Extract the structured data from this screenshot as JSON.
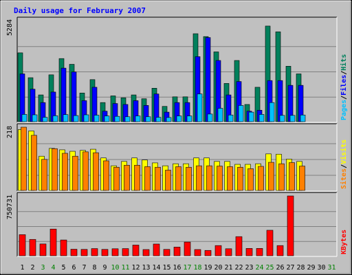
{
  "chart_data": {
    "type": "bar",
    "title": "Daily usage for February 2007",
    "x": [
      "1",
      "2",
      "3",
      "4",
      "5",
      "6",
      "7",
      "8",
      "9",
      "10",
      "11",
      "12",
      "13",
      "14",
      "15",
      "16",
      "17",
      "18",
      "19",
      "20",
      "21",
      "22",
      "23",
      "24",
      "25",
      "26",
      "27",
      "28",
      "29",
      "30",
      "31"
    ],
    "weekend_days": [
      "3",
      "4",
      "10",
      "11",
      "17",
      "18",
      "24",
      "25",
      "31"
    ],
    "colors": {
      "background": "#c0c0c0",
      "title": "#0000ff",
      "hits": "#00805c",
      "files": "#0000ff",
      "pages": "#00c0ff",
      "visits": "#ffff00",
      "sites": "#ff8000",
      "kbytes": "#ff0000",
      "weekday_label": "#000000",
      "weekend_label": "#008000"
    },
    "panels": [
      {
        "id": "hits-files-pages",
        "ymax_label": "5284",
        "ymax": 5284,
        "legend": [
          {
            "text": "Pages",
            "color": "#00c0ff"
          },
          {
            "text": "Files",
            "color": "#0000ff"
          },
          {
            "text": "Hits",
            "color": "#00805c"
          }
        ],
        "series": [
          {
            "name": "Hits",
            "color": "#00805c",
            "values": [
              3600,
              2300,
              1400,
              2450,
              3300,
              3000,
              1500,
              2200,
              1000,
              1350,
              1250,
              1400,
              1200,
              1750,
              800,
              1300,
              1300,
              4600,
              4450,
              3650,
              2000,
              3200,
              900,
              1800,
              5000,
              4700,
              2900,
              2500,
              0,
              0,
              0
            ]
          },
          {
            "name": "Files",
            "color": "#0000ff",
            "values": [
              2500,
              1700,
              1000,
              1550,
              2800,
              2600,
              1100,
              1800,
              550,
              950,
              900,
              1100,
              850,
              1450,
              500,
              1000,
              1000,
              3400,
              4400,
              3200,
              1400,
              2100,
              550,
              600,
              2150,
              2150,
              1900,
              1900,
              0,
              0,
              0
            ]
          },
          {
            "name": "Pages",
            "color": "#00c0ff",
            "values": [
              380,
              360,
              230,
              310,
              370,
              320,
              360,
              340,
              300,
              280,
              260,
              300,
              260,
              230,
              220,
              300,
              300,
              1450,
              400,
              700,
              350,
              850,
              500,
              380,
              1000,
              330,
              330,
              350,
              0,
              0,
              0
            ]
          }
        ]
      },
      {
        "id": "visits-sites",
        "ymax_label": "218",
        "ymax": 218,
        "legend": [
          {
            "text": "Sites",
            "color": "#ff8000"
          },
          {
            "text": "Visits",
            "color": "#ffff00"
          }
        ],
        "series": [
          {
            "name": "Visits",
            "color": "#ffff00",
            "values": [
              210,
              205,
              118,
              145,
              140,
              135,
              138,
              142,
              112,
              85,
              100,
              112,
              105,
              95,
              85,
              92,
              92,
              112,
              112,
              100,
              100,
              90,
              90,
              92,
              126,
              125,
              108,
              100,
              0,
              0,
              0
            ]
          },
          {
            "name": "Sites",
            "color": "#ff8000",
            "values": [
              218,
              190,
              107,
              144,
              128,
              118,
              133,
              130,
              102,
              80,
              87,
              87,
              82,
              80,
              70,
              82,
              80,
              85,
              85,
              84,
              82,
              80,
              75,
              83,
              97,
              92,
              96,
              84,
              0,
              0,
              0
            ]
          }
        ]
      },
      {
        "id": "kbytes",
        "ymax_label": "750731",
        "ymax": 750731,
        "legend": [
          {
            "text": "KBytes",
            "color": "#ff0000"
          }
        ],
        "series": [
          {
            "name": "KBytes",
            "color": "#ff0000",
            "values": [
              265000,
              205000,
              148000,
              335000,
              198000,
              82000,
              80000,
              90000,
              80000,
              88000,
              90000,
              134000,
              78000,
              147000,
              80000,
              109000,
              172000,
              78000,
              67000,
              128000,
              88000,
              240000,
              92000,
              92000,
              320000,
              128000,
              750731,
              0,
              0,
              0,
              0
            ]
          }
        ]
      }
    ]
  }
}
